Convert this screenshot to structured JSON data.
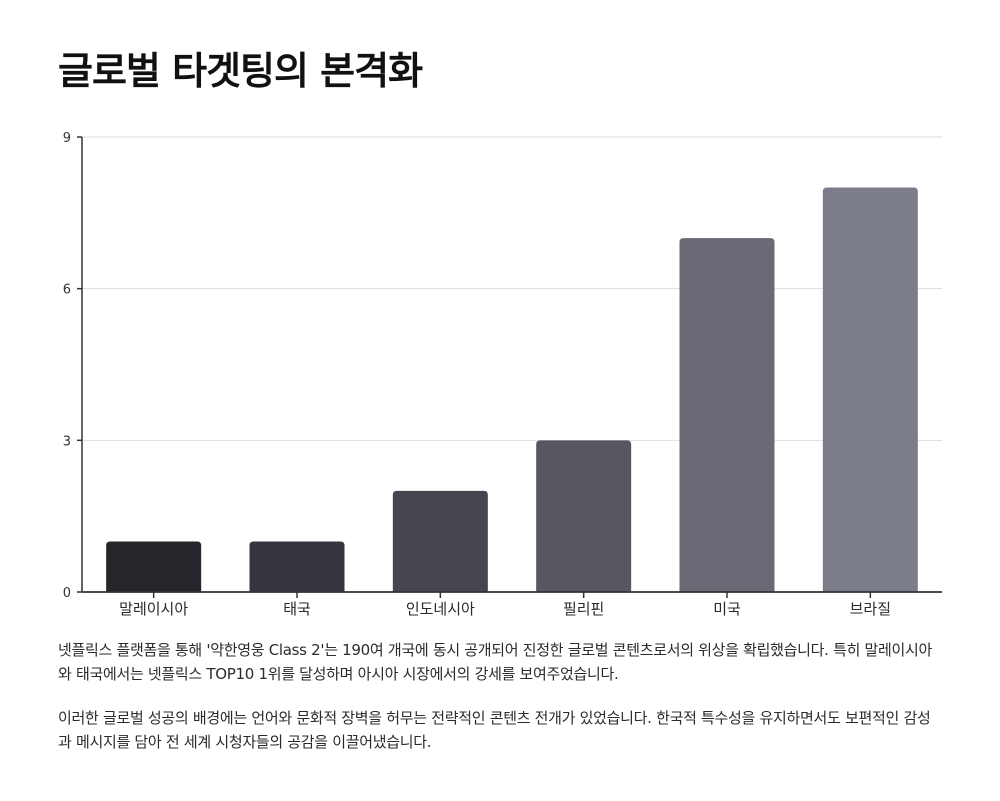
{
  "title": "글로벌 타겟팅의 본격화",
  "paragraphs": [
    "넷플릭스 플랫폼을 통해 '약한영웅 Class 2'는 190여 개국에 동시 공개되어 진정한 글로벌 콘텐츠로서의 위상을 확립했습니다. 특히 말레이시아와 태국에서는 넷플릭스 TOP10 1위를 달성하며 아시아 시장에서의 강세를 보여주었습니다.",
    "이러한 글로벌 성공의 배경에는 언어와 문화적 장벽을 허무는 전략적인 콘텐츠 전개가 있었습니다. 한국적 특수성을 유지하면서도 보편적인 감성과 메시지를 담아 전 세계 시청자들의 공감을 이끌어냈습니다."
  ],
  "chart_data": {
    "type": "bar",
    "title": "",
    "xlabel": "",
    "ylabel": "",
    "categories": [
      "말레이시아",
      "태국",
      "인도네시아",
      "필리핀",
      "미국",
      "브라질"
    ],
    "values": [
      1,
      1,
      2,
      3,
      7,
      8
    ],
    "ylim": [
      0,
      9
    ],
    "yticks": [
      0,
      3,
      6,
      9
    ],
    "grid": true,
    "legend": "none",
    "colors": [
      "#25262b",
      "#35363d",
      "#44454e",
      "#57575f",
      "#696a76",
      "#7c7d8a"
    ],
    "axis_color": "#333333",
    "grid_color": "#dddddd"
  }
}
